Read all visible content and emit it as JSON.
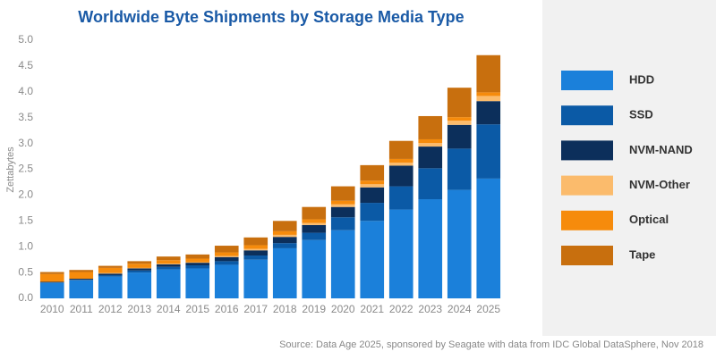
{
  "chart_data": {
    "type": "stacked_bar",
    "title": "Worldwide Byte Shipments by Storage Media Type",
    "y_label": "Zettabytes",
    "source": "Source: Data Age 2025, sponsored by Seagate with data from IDC Global DataSphere, Nov 2018",
    "categories": [
      "2010",
      "2011",
      "2012",
      "2013",
      "2014",
      "2015",
      "2016",
      "2017",
      "2018",
      "2019",
      "2020",
      "2021",
      "2022",
      "2023",
      "2024",
      "2025"
    ],
    "series": [
      {
        "name": "HDD",
        "color": "#1b80da",
        "values": [
          0.3,
          0.35,
          0.42,
          0.5,
          0.56,
          0.58,
          0.65,
          0.75,
          0.97,
          1.13,
          1.32,
          1.5,
          1.72,
          1.92,
          2.1,
          2.32
        ]
      },
      {
        "name": "SSD",
        "color": "#0b5aa6",
        "values": [
          0.01,
          0.01,
          0.03,
          0.04,
          0.05,
          0.06,
          0.07,
          0.08,
          0.1,
          0.14,
          0.25,
          0.35,
          0.45,
          0.6,
          0.8,
          1.05
        ]
      },
      {
        "name": "NVM-NAND",
        "color": "#0c2f5b",
        "values": [
          0.01,
          0.02,
          0.03,
          0.04,
          0.05,
          0.05,
          0.08,
          0.1,
          0.12,
          0.15,
          0.2,
          0.3,
          0.4,
          0.42,
          0.46,
          0.45
        ]
      },
      {
        "name": "NVM-Other",
        "color": "#fbbb6c",
        "values": [
          0,
          0,
          0.01,
          0.01,
          0.01,
          0.01,
          0.02,
          0.03,
          0.04,
          0.04,
          0.05,
          0.06,
          0.06,
          0.07,
          0.08,
          0.1
        ]
      },
      {
        "name": "Optical",
        "color": "#f68b0c",
        "values": [
          0.15,
          0.13,
          0.1,
          0.08,
          0.07,
          0.07,
          0.07,
          0.07,
          0.07,
          0.07,
          0.07,
          0.07,
          0.07,
          0.07,
          0.07,
          0.07
        ]
      },
      {
        "name": "Tape",
        "color": "#c86f0e",
        "values": [
          0.04,
          0.04,
          0.04,
          0.05,
          0.07,
          0.08,
          0.13,
          0.15,
          0.2,
          0.24,
          0.28,
          0.3,
          0.35,
          0.45,
          0.57,
          0.72
        ]
      }
    ],
    "ylim": [
      0,
      5
    ],
    "yticks": [
      {
        "value": 0,
        "label": "0.0"
      },
      0.5,
      {
        "value": 1,
        "label": "1.0"
      },
      1.5,
      {
        "value": 2,
        "label": "2.0"
      },
      2.5,
      {
        "value": 3,
        "label": "3.0"
      },
      3.5,
      {
        "value": 4,
        "label": "4.0"
      },
      4.5,
      {
        "value": 5,
        "label": "5.0"
      }
    ],
    "grid": false
  }
}
